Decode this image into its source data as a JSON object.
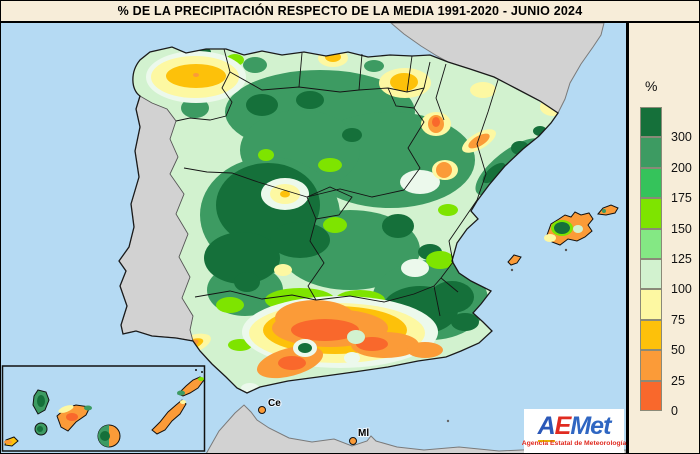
{
  "title": "% DE LA PRECIPITACIÓN RESPECTO DE LA MEDIA 1991-2020 - JUNIO 2024",
  "legend": {
    "unit_label": "%",
    "items": [
      {
        "label": "300",
        "color": "#15703a"
      },
      {
        "label": "200",
        "color": "#3d9b62"
      },
      {
        "label": "175",
        "color": "#35c35b"
      },
      {
        "label": "150",
        "color": "#7ee400"
      },
      {
        "label": "125",
        "color": "#84e884"
      },
      {
        "label": "100",
        "color": "#d2f2cf"
      },
      {
        "label": "75",
        "color": "#fdf8a2"
      },
      {
        "label": "50",
        "color": "#fdc10a"
      },
      {
        "label": "25",
        "color": "#fb9b38"
      },
      {
        "label": "0",
        "color": "#f9682c"
      }
    ]
  },
  "map": {
    "sea_color": "#b5daf3",
    "no_data_land_color": "#d2d2d2",
    "labels": [
      {
        "text": "Ce"
      },
      {
        "text": "Ml"
      }
    ]
  },
  "logo": {
    "parts": [
      "A",
      "E",
      "Met"
    ],
    "tagline": "Agencia Estatal de Meteorología"
  }
}
